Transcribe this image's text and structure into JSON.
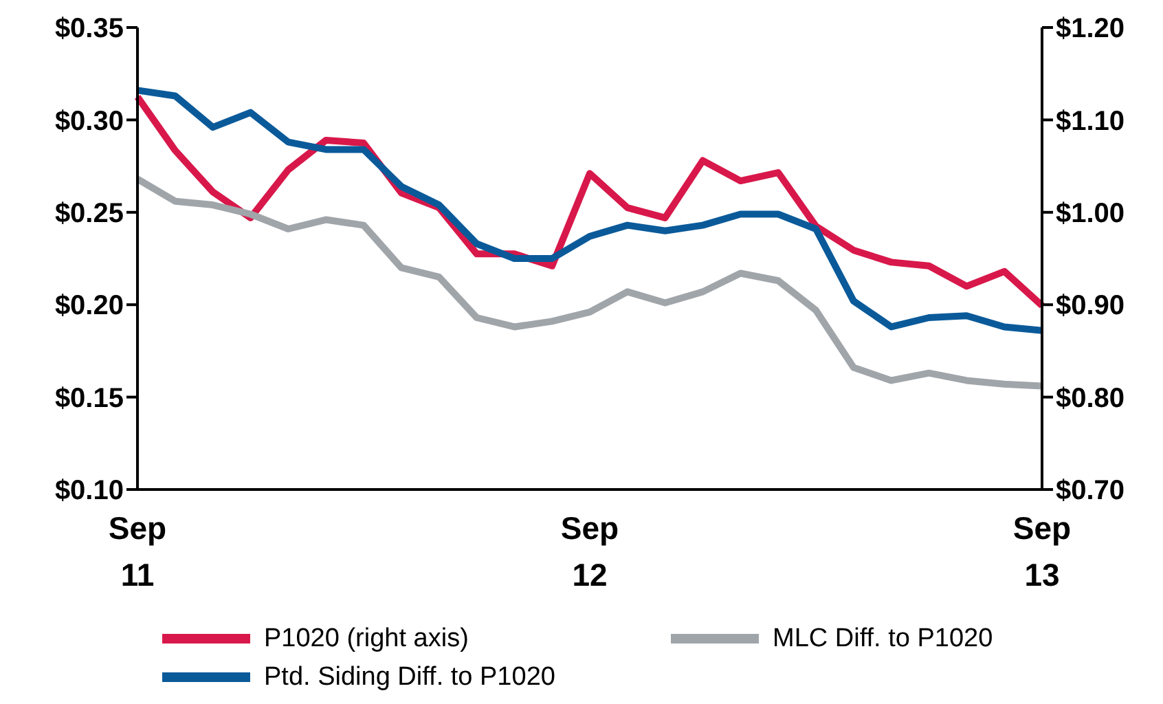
{
  "chart_data": {
    "type": "line",
    "categories": [
      "Sep 11",
      null,
      null,
      null,
      null,
      null,
      null,
      null,
      null,
      null,
      null,
      null,
      "Sep 12",
      null,
      null,
      null,
      null,
      null,
      null,
      null,
      null,
      null,
      null,
      null,
      "Sep 13"
    ],
    "series": [
      {
        "name": "P1020 (right axis)",
        "color": "#d8184a",
        "axis": "y2",
        "values": [
          1.125,
          1.067,
          1.022,
          0.994,
          1.046,
          1.078,
          1.075,
          1.021,
          1.005,
          0.955,
          0.955,
          0.942,
          1.042,
          1.005,
          0.994,
          1.056,
          1.034,
          1.043,
          0.985,
          0.959,
          0.946,
          0.942,
          0.92,
          0.936,
          0.899
        ]
      },
      {
        "name": "MLC Diff. to P1020",
        "color": "#a0a5aa",
        "values": [
          0.268,
          0.256,
          0.254,
          0.249,
          0.241,
          0.246,
          0.243,
          0.22,
          0.215,
          0.193,
          0.188,
          0.191,
          0.196,
          0.207,
          0.201,
          0.207,
          0.217,
          0.213,
          0.197,
          0.166,
          0.159,
          0.163,
          0.159,
          0.157,
          0.156
        ]
      },
      {
        "name": "Ptd. Siding Diff. to P1020",
        "color": "#0a5a9a",
        "values": [
          0.316,
          0.313,
          0.296,
          0.304,
          0.288,
          0.284,
          0.284,
          0.264,
          0.254,
          0.233,
          0.225,
          0.225,
          0.237,
          0.243,
          0.24,
          0.243,
          0.249,
          0.249,
          0.241,
          0.202,
          0.188,
          0.193,
          0.194,
          0.188,
          0.186
        ]
      }
    ],
    "ylim": [
      0.1,
      0.35
    ],
    "yticks": [
      {
        "value": 0.1,
        "label": "$0.10"
      },
      {
        "value": 0.15,
        "label": "$0.15"
      },
      {
        "value": 0.2,
        "label": "$0.20"
      },
      {
        "value": 0.25,
        "label": "$0.25"
      },
      {
        "value": 0.3,
        "label": "$0.30"
      },
      {
        "value": 0.35,
        "label": "$0.35"
      }
    ],
    "y2lim": [
      0.7,
      1.2
    ],
    "y2ticks": [
      {
        "value": 0.7,
        "label": "$0.70"
      },
      {
        "value": 0.8,
        "label": "$0.80"
      },
      {
        "value": 0.9,
        "label": "$0.90"
      },
      {
        "value": 1.0,
        "label": "$1.00"
      },
      {
        "value": 1.1,
        "label": "$1.10"
      },
      {
        "value": 1.2,
        "label": "$1.20"
      }
    ],
    "grid": false,
    "legend": "bottom",
    "marker": "none",
    "line_style": "solid"
  }
}
